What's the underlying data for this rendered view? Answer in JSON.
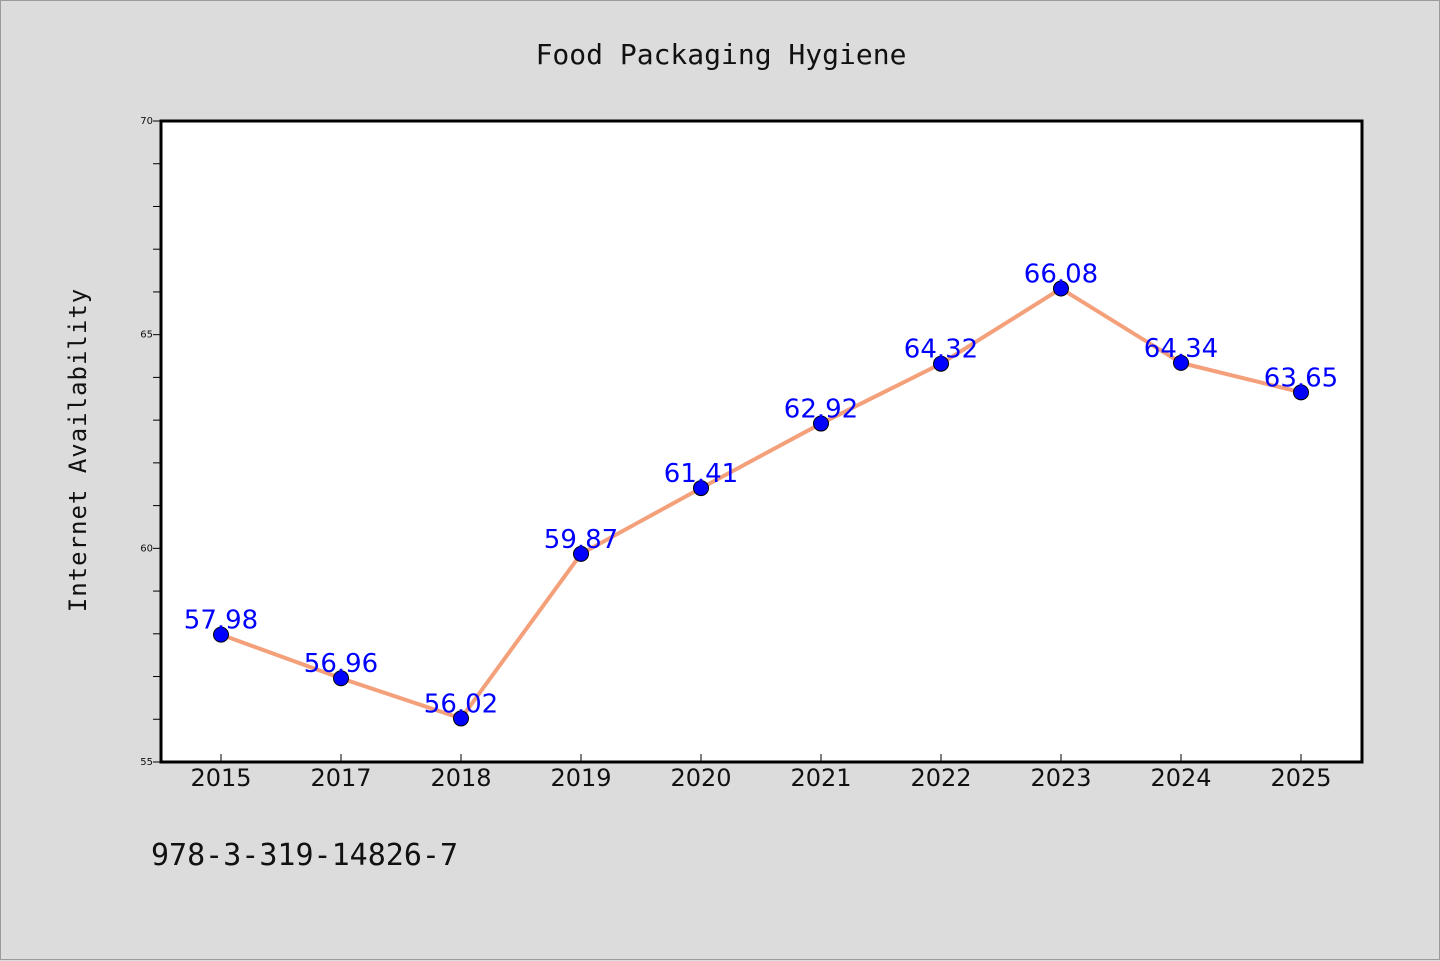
{
  "chart_data": {
    "type": "line",
    "title": "Food Packaging Hygiene",
    "xlabel": "",
    "ylabel": "Internet Availability",
    "categories": [
      "2015",
      "2017",
      "2018",
      "2019",
      "2020",
      "2021",
      "2022",
      "2023",
      "2024",
      "2025"
    ],
    "series": [
      {
        "values": [
          57.98,
          56.96,
          56.02,
          59.87,
          61.41,
          62.92,
          64.32,
          66.08,
          64.34,
          63.65
        ],
        "line_color": "#f4a07a",
        "marker_color": "#0000ff",
        "label_color": "#0000ff"
      }
    ],
    "ylim": [
      55,
      70
    ],
    "yticks": [
      "55",
      "60",
      "65",
      "70"
    ],
    "grid": false,
    "legend": "none"
  },
  "footnote": "978-3-319-14826-7"
}
